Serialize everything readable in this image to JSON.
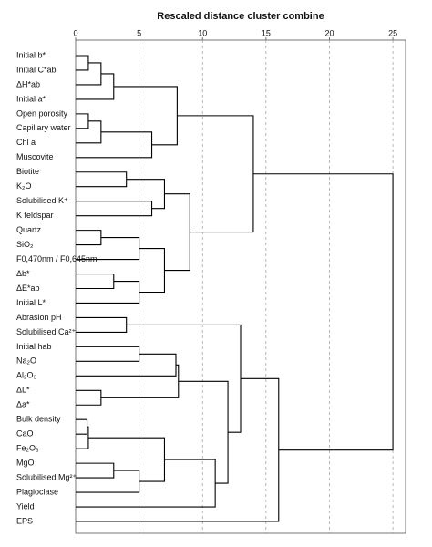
{
  "chart_data": {
    "type": "dendrogram",
    "title": "Rescaled distance cluster combine",
    "leaves": [
      "Initial b*",
      "Initial C*ab",
      "ΔH*ab",
      "Initial a*",
      "Open porosity",
      "Capillary water",
      "Chl a",
      "Muscovite",
      "Biotite",
      "K₂O",
      "Solubilised K⁺",
      "K feldspar",
      "Quartz",
      "SiO₂",
      "F0,470nm / F0,645nm",
      "Δb*",
      "ΔE*ab",
      "Initial L*",
      "Abrasion pH",
      "Solubilised Ca²⁺",
      "Initial hab",
      "Na₂O",
      "Al₂O₃",
      "ΔL*",
      "Δa*",
      "Bulk density",
      "CaO",
      "Fe₂O₃",
      "MgO",
      "Solubilised Mg²⁺",
      "Plagioclase",
      "Yield",
      "EPS"
    ],
    "merges": [
      {
        "a": 0,
        "b": 1,
        "height": 1.0
      },
      {
        "a": 33,
        "b": 2,
        "height": 2.0
      },
      {
        "a": 34,
        "b": 3,
        "height": 3.0
      },
      {
        "a": 4,
        "b": 5,
        "height": 1.0
      },
      {
        "a": 36,
        "b": 6,
        "height": 2.0
      },
      {
        "a": 37,
        "b": 7,
        "height": 6.0
      },
      {
        "a": 35,
        "b": 38,
        "height": 8.0
      },
      {
        "a": 8,
        "b": 9,
        "height": 4.0
      },
      {
        "a": 10,
        "b": 11,
        "height": 6.0
      },
      {
        "a": 40,
        "b": 41,
        "height": 7.0
      },
      {
        "a": 12,
        "b": 13,
        "height": 2.0
      },
      {
        "a": 43,
        "b": 14,
        "height": 5.0
      },
      {
        "a": 15,
        "b": 16,
        "height": 3.0
      },
      {
        "a": 45,
        "b": 17,
        "height": 5.0
      },
      {
        "a": 44,
        "b": 46,
        "height": 7.0
      },
      {
        "a": 42,
        "b": 47,
        "height": 9.0
      },
      {
        "a": 39,
        "b": 48,
        "height": 14.0
      },
      {
        "a": 18,
        "b": 19,
        "height": 4.0
      },
      {
        "a": 20,
        "b": 21,
        "height": 5.0
      },
      {
        "a": 51,
        "b": 22,
        "height": 7.9
      },
      {
        "a": 23,
        "b": 24,
        "height": 2.0
      },
      {
        "a": 52,
        "b": 53,
        "height": 8.1
      },
      {
        "a": 25,
        "b": 26,
        "height": 0.9
      },
      {
        "a": 55,
        "b": 27,
        "height": 1.0
      },
      {
        "a": 28,
        "b": 29,
        "height": 3.0
      },
      {
        "a": 57,
        "b": 30,
        "height": 5.0
      },
      {
        "a": 56,
        "b": 58,
        "height": 7.0
      },
      {
        "a": 59,
        "b": 31,
        "height": 11.0
      },
      {
        "a": 54,
        "b": 60,
        "height": 12.0
      },
      {
        "a": 50,
        "b": 61,
        "height": 13.0
      },
      {
        "a": 62,
        "b": 32,
        "height": 16.0
      },
      {
        "a": 49,
        "b": 63,
        "height": 25.0
      }
    ],
    "xlim": [
      0,
      26
    ],
    "xticks": [
      0,
      5,
      10,
      15,
      20,
      25
    ],
    "grid": true,
    "color": "#000000"
  }
}
